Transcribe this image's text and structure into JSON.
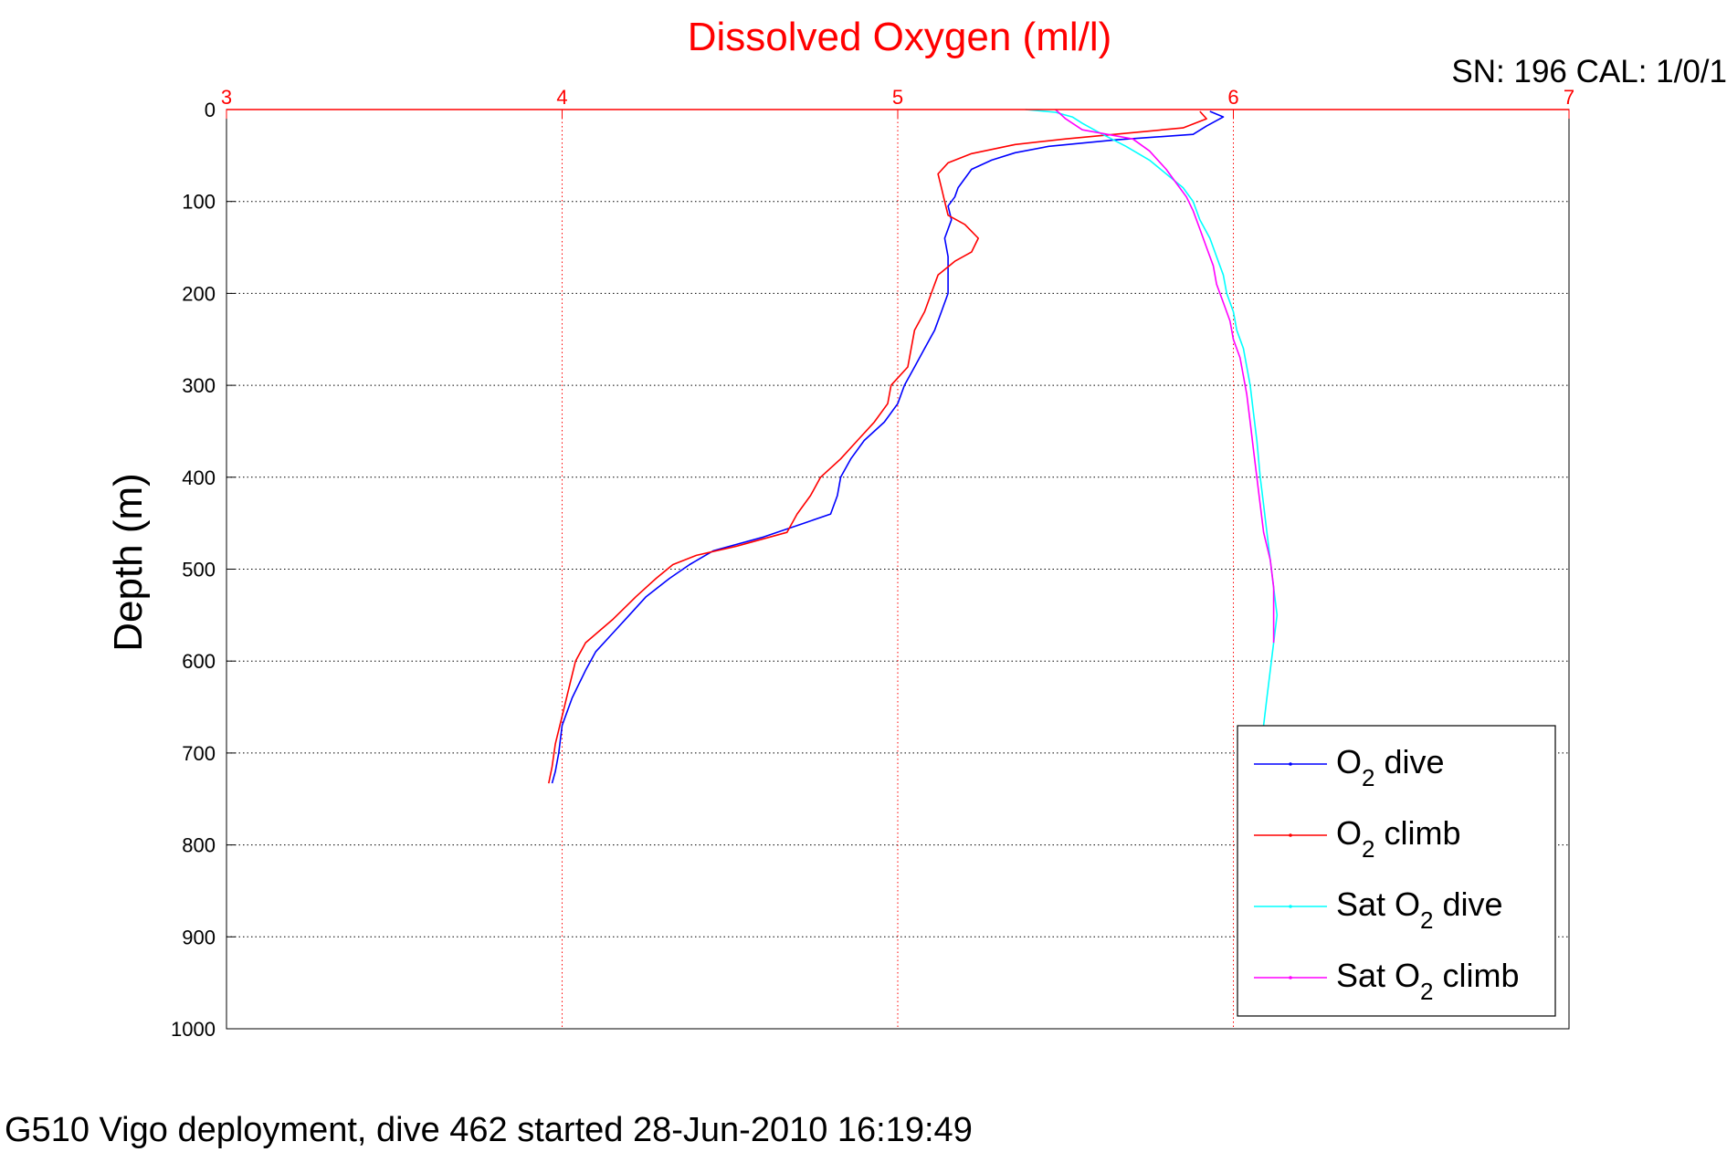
{
  "chart_data": {
    "type": "line",
    "title": "Dissolved Oxygen (ml/l)",
    "title_color": "#ff0000",
    "corner_label": "SN: 196  CAL: 1/0/1",
    "footer": "G510 Vigo deployment, dive 462 started 28-Jun-2010 16:19:49",
    "ylabel": "Depth (m)",
    "xlim": [
      3,
      7
    ],
    "ylim": [
      0,
      1000
    ],
    "y_reversed": true,
    "x_axis_position": "top",
    "x_axis_color": "#ff0000",
    "x_grid_color": "#ff0000",
    "y_grid_color": "#000000",
    "grid": true,
    "x_ticks": [
      3,
      4,
      5,
      6,
      7
    ],
    "y_ticks": [
      0,
      100,
      200,
      300,
      400,
      500,
      600,
      700,
      800,
      900,
      1000
    ],
    "legend_position": "bottom-right",
    "series": [
      {
        "label_main": "O",
        "label_sub": "2",
        "label_rest": " dive",
        "color": "#0000ff",
        "points": [
          [
            5.93,
            2
          ],
          [
            5.97,
            8
          ],
          [
            5.92,
            18
          ],
          [
            5.88,
            27
          ],
          [
            5.65,
            33
          ],
          [
            5.45,
            40
          ],
          [
            5.35,
            47
          ],
          [
            5.28,
            55
          ],
          [
            5.22,
            65
          ],
          [
            5.2,
            75
          ],
          [
            5.18,
            85
          ],
          [
            5.17,
            95
          ],
          [
            5.15,
            105
          ],
          [
            5.16,
            120
          ],
          [
            5.14,
            140
          ],
          [
            5.15,
            160
          ],
          [
            5.15,
            180
          ],
          [
            5.15,
            200
          ],
          [
            5.13,
            220
          ],
          [
            5.11,
            240
          ],
          [
            5.08,
            260
          ],
          [
            5.05,
            280
          ],
          [
            5.02,
            300
          ],
          [
            5.0,
            320
          ],
          [
            4.96,
            340
          ],
          [
            4.9,
            360
          ],
          [
            4.86,
            380
          ],
          [
            4.83,
            400
          ],
          [
            4.82,
            420
          ],
          [
            4.8,
            440
          ],
          [
            4.72,
            450
          ],
          [
            4.6,
            465
          ],
          [
            4.45,
            480
          ],
          [
            4.38,
            495
          ],
          [
            4.32,
            510
          ],
          [
            4.25,
            530
          ],
          [
            4.2,
            550
          ],
          [
            4.15,
            570
          ],
          [
            4.1,
            590
          ],
          [
            4.07,
            610
          ],
          [
            4.03,
            640
          ],
          [
            4.0,
            670
          ],
          [
            3.99,
            700
          ],
          [
            3.98,
            720
          ],
          [
            3.97,
            733
          ]
        ]
      },
      {
        "label_main": "O",
        "label_sub": "2",
        "label_rest": " climb",
        "color": "#ff0000",
        "points": [
          [
            5.9,
            2
          ],
          [
            5.92,
            10
          ],
          [
            5.85,
            20
          ],
          [
            5.5,
            32
          ],
          [
            5.35,
            38
          ],
          [
            5.22,
            48
          ],
          [
            5.15,
            58
          ],
          [
            5.12,
            70
          ],
          [
            5.13,
            85
          ],
          [
            5.14,
            100
          ],
          [
            5.15,
            115
          ],
          [
            5.2,
            125
          ],
          [
            5.24,
            140
          ],
          [
            5.22,
            155
          ],
          [
            5.17,
            165
          ],
          [
            5.12,
            180
          ],
          [
            5.1,
            200
          ],
          [
            5.08,
            220
          ],
          [
            5.05,
            240
          ],
          [
            5.04,
            260
          ],
          [
            5.03,
            280
          ],
          [
            4.98,
            300
          ],
          [
            4.97,
            320
          ],
          [
            4.93,
            340
          ],
          [
            4.88,
            360
          ],
          [
            4.83,
            380
          ],
          [
            4.77,
            400
          ],
          [
            4.74,
            420
          ],
          [
            4.7,
            440
          ],
          [
            4.67,
            460
          ],
          [
            4.52,
            475
          ],
          [
            4.4,
            485
          ],
          [
            4.33,
            495
          ],
          [
            4.28,
            510
          ],
          [
            4.22,
            530
          ],
          [
            4.15,
            555
          ],
          [
            4.07,
            580
          ],
          [
            4.04,
            600
          ],
          [
            4.02,
            630
          ],
          [
            4.0,
            660
          ],
          [
            3.98,
            690
          ],
          [
            3.97,
            715
          ],
          [
            3.96,
            733
          ]
        ]
      },
      {
        "label_main": "Sat O",
        "label_sub": "2",
        "label_rest": " dive",
        "color": "#00ffff",
        "points": [
          [
            5.38,
            0
          ],
          [
            5.47,
            3
          ],
          [
            5.52,
            8
          ],
          [
            5.55,
            15
          ],
          [
            5.6,
            25
          ],
          [
            5.68,
            40
          ],
          [
            5.75,
            55
          ],
          [
            5.8,
            70
          ],
          [
            5.85,
            85
          ],
          [
            5.88,
            100
          ],
          [
            5.9,
            120
          ],
          [
            5.93,
            140
          ],
          [
            5.95,
            160
          ],
          [
            5.97,
            180
          ],
          [
            5.98,
            200
          ],
          [
            6.0,
            220
          ],
          [
            6.01,
            240
          ],
          [
            6.03,
            260
          ],
          [
            6.04,
            280
          ],
          [
            6.05,
            300
          ],
          [
            6.06,
            330
          ],
          [
            6.07,
            360
          ],
          [
            6.08,
            400
          ],
          [
            6.09,
            430
          ],
          [
            6.1,
            460
          ],
          [
            6.11,
            490
          ],
          [
            6.12,
            520
          ],
          [
            6.13,
            550
          ],
          [
            6.12,
            580
          ],
          [
            6.11,
            610
          ],
          [
            6.1,
            640
          ],
          [
            6.09,
            670
          ]
        ]
      },
      {
        "label_main": "Sat O",
        "label_sub": "2",
        "label_rest": " climb",
        "color": "#ff00ff",
        "points": [
          [
            5.47,
            0
          ],
          [
            5.5,
            10
          ],
          [
            5.55,
            22
          ],
          [
            5.7,
            32
          ],
          [
            5.75,
            45
          ],
          [
            5.8,
            65
          ],
          [
            5.83,
            80
          ],
          [
            5.86,
            95
          ],
          [
            5.88,
            110
          ],
          [
            5.9,
            130
          ],
          [
            5.92,
            150
          ],
          [
            5.94,
            170
          ],
          [
            5.95,
            190
          ],
          [
            5.97,
            210
          ],
          [
            5.99,
            230
          ],
          [
            6.0,
            250
          ],
          [
            6.02,
            270
          ],
          [
            6.03,
            290
          ],
          [
            6.04,
            310
          ],
          [
            6.05,
            340
          ],
          [
            6.06,
            370
          ],
          [
            6.07,
            400
          ],
          [
            6.08,
            430
          ],
          [
            6.09,
            460
          ],
          [
            6.11,
            490
          ],
          [
            6.12,
            520
          ],
          [
            6.12,
            550
          ],
          [
            6.12,
            580
          ]
        ]
      }
    ]
  }
}
